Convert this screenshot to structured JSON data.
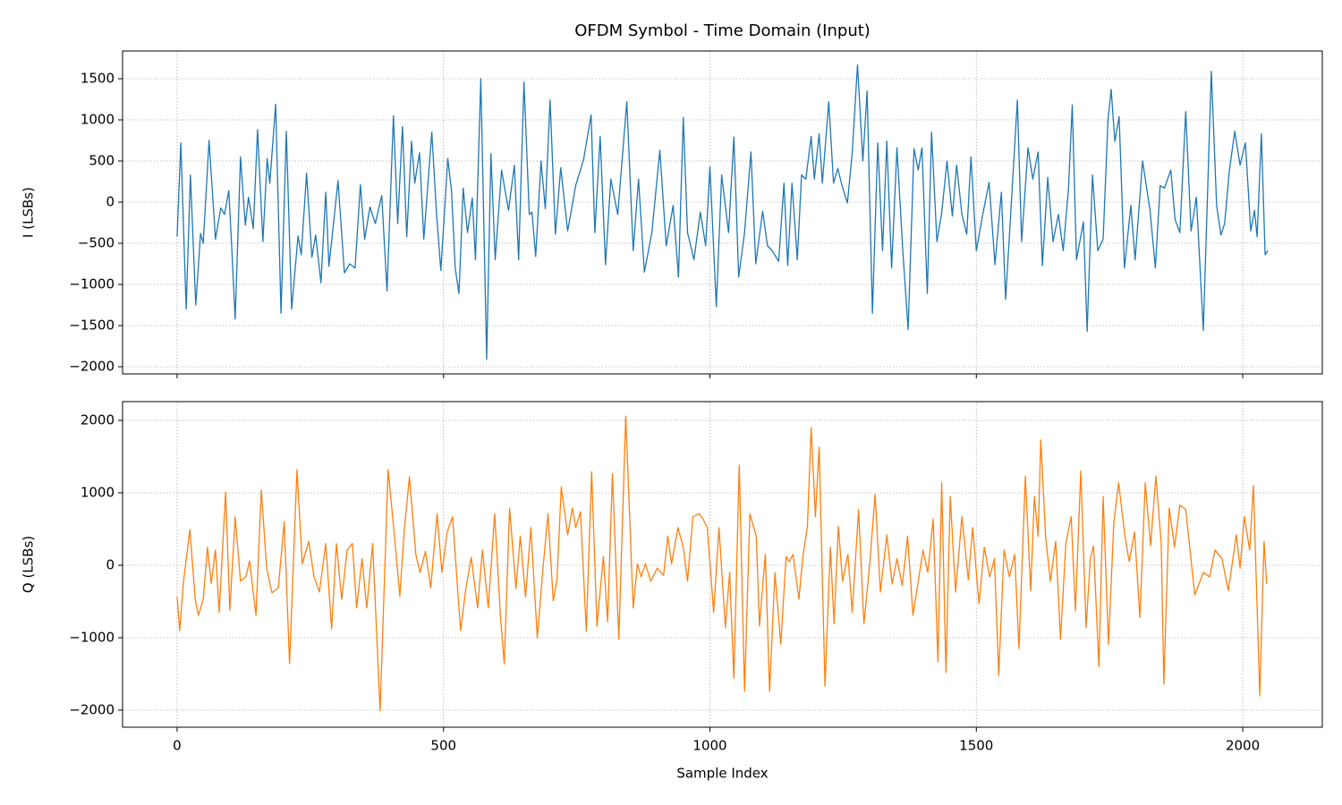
{
  "chart_data": [
    {
      "type": "line",
      "title": "OFDM Symbol - Time Domain (Input)",
      "ylabel": "I (LSBs)",
      "color": "#1f77b4",
      "grid": true,
      "xlim": [
        -102.35,
        2149.35
      ],
      "xticks": [
        0,
        500,
        1000,
        1500,
        2000
      ],
      "ylim": [
        -2087,
        1837
      ],
      "yticks": [
        {
          "value": -2000,
          "label": "−2000"
        },
        {
          "value": -1500,
          "label": "−1500"
        },
        {
          "value": -1000,
          "label": "−1000"
        },
        {
          "value": -500,
          "label": "−500"
        },
        0,
        500,
        1000,
        1500
      ],
      "x": [
        0,
        7,
        17,
        25,
        35,
        44,
        49,
        60,
        72,
        82,
        89,
        97,
        102,
        109,
        119,
        128,
        134,
        143,
        151,
        161,
        169,
        174,
        185,
        195,
        205,
        215,
        227,
        233,
        243,
        253,
        260,
        270,
        279,
        285,
        302,
        314,
        324,
        334,
        344,
        352,
        362,
        372,
        384,
        394,
        406,
        414,
        423,
        431,
        440,
        446,
        455,
        463,
        478,
        487,
        495,
        508,
        515,
        522,
        529,
        537,
        545,
        554,
        560,
        570,
        581,
        589,
        597,
        609,
        622,
        633,
        641,
        651,
        661,
        666,
        673,
        683,
        691,
        700,
        710,
        720,
        733,
        748,
        763,
        777,
        784,
        794,
        804,
        814,
        827,
        844,
        856,
        866,
        877,
        891,
        906,
        918,
        931,
        941,
        950,
        958,
        970,
        982,
        992,
        1000,
        1012,
        1022,
        1035,
        1045,
        1054,
        1065,
        1077,
        1086,
        1099,
        1108,
        1117,
        1129,
        1139,
        1146,
        1154,
        1164,
        1172,
        1180,
        1190,
        1196,
        1205,
        1211,
        1223,
        1232,
        1240,
        1248,
        1258,
        1267,
        1277,
        1287,
        1295,
        1305,
        1315,
        1324,
        1332,
        1341,
        1351,
        1362,
        1372,
        1383,
        1391,
        1398,
        1408,
        1416,
        1426,
        1435,
        1445,
        1455,
        1463,
        1473,
        1482,
        1490,
        1500,
        1512,
        1524,
        1535,
        1547,
        1555,
        1565,
        1577,
        1585,
        1597,
        1606,
        1616,
        1624,
        1634,
        1644,
        1654,
        1663,
        1673,
        1680,
        1688,
        1701,
        1708,
        1718,
        1728,
        1738,
        1747,
        1753,
        1760,
        1768,
        1778,
        1790,
        1798,
        1812,
        1826,
        1836,
        1845,
        1853,
        1865,
        1873,
        1882,
        1893,
        1903,
        1913,
        1926,
        1941,
        1951,
        1959,
        1966,
        1975,
        1985,
        1995,
        2005,
        2015,
        2022,
        2027,
        2035,
        2042,
        2047
      ],
      "values": [
        -420,
        720,
        -1300,
        330,
        -1250,
        -380,
        -500,
        750,
        -450,
        -70,
        -150,
        140,
        -480,
        -1420,
        550,
        -280,
        60,
        -320,
        880,
        -480,
        530,
        230,
        1190,
        -1350,
        860,
        -1300,
        -410,
        -640,
        350,
        -670,
        -400,
        -980,
        120,
        -780,
        260,
        -860,
        -750,
        -800,
        210,
        -450,
        -60,
        -260,
        80,
        -1080,
        1050,
        -260,
        920,
        -420,
        740,
        230,
        600,
        -450,
        850,
        -150,
        -830,
        530,
        140,
        -800,
        -1110,
        170,
        -370,
        50,
        -700,
        1500,
        -1910,
        590,
        -700,
        390,
        -100,
        450,
        -700,
        1460,
        -150,
        -120,
        -660,
        500,
        -80,
        1240,
        -390,
        420,
        -350,
        200,
        520,
        1060,
        -370,
        800,
        -760,
        280,
        -150,
        1220,
        -590,
        280,
        -850,
        -370,
        630,
        -530,
        -40,
        -910,
        1030,
        -370,
        -700,
        -120,
        -530,
        430,
        -1270,
        330,
        -370,
        790,
        -910,
        -370,
        610,
        -750,
        -110,
        -530,
        -590,
        -720,
        230,
        -770,
        230,
        -700,
        330,
        280,
        800,
        280,
        830,
        230,
        1220,
        230,
        410,
        200,
        -10,
        590,
        1670,
        500,
        1350,
        -1350,
        720,
        -590,
        740,
        -800,
        660,
        -590,
        -1550,
        650,
        390,
        660,
        -1110,
        850,
        -480,
        -130,
        500,
        -170,
        450,
        -150,
        -390,
        550,
        -590,
        -150,
        240,
        -760,
        120,
        -1180,
        -90,
        1240,
        -480,
        660,
        280,
        610,
        -770,
        300,
        -480,
        -150,
        -590,
        170,
        1180,
        -700,
        -240,
        -1570,
        330,
        -590,
        -450,
        990,
        1370,
        740,
        1040,
        -800,
        -40,
        -700,
        500,
        -100,
        -800,
        200,
        170,
        390,
        -210,
        -370,
        1100,
        -350,
        60,
        -1560,
        1590,
        -40,
        -400,
        -260,
        390,
        860,
        450,
        720,
        -350,
        -100,
        -420,
        830,
        -640,
        -590
      ]
    },
    {
      "type": "line",
      "ylabel": "Q (LSBs)",
      "xlabel": "Sample Index",
      "color": "#ff7f0e",
      "grid": true,
      "xlim": [
        -102.35,
        2149.35
      ],
      "xticks": [
        0,
        500,
        1000,
        1500,
        2000
      ],
      "ylim": [
        -2235,
        2259
      ],
      "yticks": [
        {
          "value": -2000,
          "label": "−2000"
        },
        {
          "value": -1000,
          "label": "−1000"
        },
        0,
        1000,
        2000
      ],
      "x": [
        0,
        5,
        12,
        24,
        34,
        40,
        49,
        57,
        64,
        72,
        79,
        91,
        99,
        109,
        119,
        129,
        136,
        148,
        158,
        168,
        178,
        190,
        201,
        211,
        225,
        235,
        247,
        257,
        267,
        279,
        290,
        299,
        309,
        319,
        329,
        337,
        347,
        356,
        367,
        381,
        396,
        408,
        418,
        426,
        436,
        448,
        456,
        466,
        476,
        488,
        497,
        507,
        517,
        532,
        542,
        552,
        564,
        573,
        584,
        596,
        607,
        614,
        624,
        636,
        644,
        654,
        664,
        676,
        686,
        696,
        706,
        713,
        721,
        733,
        742,
        748,
        757,
        768,
        778,
        788,
        800,
        808,
        817,
        829,
        842,
        856,
        864,
        871,
        879,
        889,
        901,
        913,
        921,
        928,
        940,
        950,
        958,
        968,
        980,
        987,
        995,
        1007,
        1017,
        1029,
        1037,
        1045,
        1055,
        1065,
        1075,
        1087,
        1093,
        1104,
        1112,
        1122,
        1133,
        1143,
        1149,
        1156,
        1167,
        1174,
        1183,
        1190,
        1198,
        1205,
        1216,
        1226,
        1233,
        1241,
        1249,
        1259,
        1267,
        1279,
        1289,
        1300,
        1310,
        1320,
        1332,
        1342,
        1351,
        1361,
        1371,
        1381,
        1391,
        1400,
        1409,
        1419,
        1428,
        1435,
        1443,
        1451,
        1461,
        1473,
        1485,
        1493,
        1505,
        1515,
        1525,
        1534,
        1542,
        1552,
        1562,
        1572,
        1580,
        1592,
        1602,
        1609,
        1616,
        1621,
        1630,
        1639,
        1649,
        1658,
        1668,
        1678,
        1686,
        1696,
        1706,
        1714,
        1720,
        1730,
        1738,
        1748,
        1758,
        1767,
        1779,
        1787,
        1797,
        1807,
        1817,
        1827,
        1837,
        1847,
        1852,
        1862,
        1872,
        1882,
        1893,
        1910,
        1926,
        1938,
        1948,
        1961,
        1973,
        1988,
        1995,
        2003,
        2013,
        2020,
        2032,
        2040,
        2045
      ],
      "values": [
        -440,
        -900,
        -220,
        490,
        -470,
        -690,
        -470,
        250,
        -250,
        210,
        -650,
        1010,
        -620,
        670,
        -220,
        -160,
        60,
        -690,
        1040,
        -40,
        -380,
        -310,
        600,
        -1360,
        1320,
        20,
        330,
        -160,
        -370,
        300,
        -880,
        300,
        -470,
        210,
        300,
        -590,
        90,
        -590,
        300,
        -2010,
        1320,
        400,
        -430,
        460,
        1220,
        150,
        -100,
        190,
        -310,
        710,
        -100,
        460,
        670,
        -900,
        -320,
        110,
        -590,
        210,
        -590,
        710,
        -720,
        -1360,
        790,
        -320,
        400,
        -440,
        520,
        -1000,
        -100,
        710,
        -490,
        -200,
        1080,
        420,
        790,
        520,
        740,
        -910,
        1290,
        -840,
        120,
        -780,
        1260,
        -1020,
        2060,
        -590,
        20,
        -160,
        20,
        -220,
        -40,
        -140,
        400,
        20,
        520,
        250,
        -220,
        670,
        710,
        640,
        520,
        -650,
        520,
        -860,
        -100,
        -1560,
        1380,
        -1740,
        710,
        400,
        -840,
        150,
        -1740,
        -100,
        -1090,
        120,
        50,
        150,
        -470,
        90,
        540,
        1900,
        670,
        1630,
        -1670,
        250,
        -810,
        540,
        -220,
        150,
        -650,
        770,
        -810,
        20,
        980,
        -370,
        420,
        -260,
        90,
        -280,
        400,
        -690,
        -220,
        210,
        -100,
        640,
        -1330,
        1140,
        -1480,
        950,
        -370,
        670,
        -200,
        520,
        -530,
        250,
        -160,
        90,
        -1520,
        210,
        -160,
        150,
        -1150,
        1230,
        -350,
        950,
        400,
        1730,
        400,
        -220,
        330,
        -1020,
        300,
        670,
        -630,
        1300,
        -860,
        90,
        270,
        -1400,
        950,
        -1090,
        580,
        1140,
        400,
        50,
        460,
        -720,
        1140,
        270,
        1230,
        300,
        -1640,
        790,
        250,
        830,
        770,
        -410,
        -100,
        -160,
        210,
        90,
        -350,
        420,
        -40,
        670,
        210,
        1100,
        -1800,
        330,
        -260
      ]
    }
  ]
}
